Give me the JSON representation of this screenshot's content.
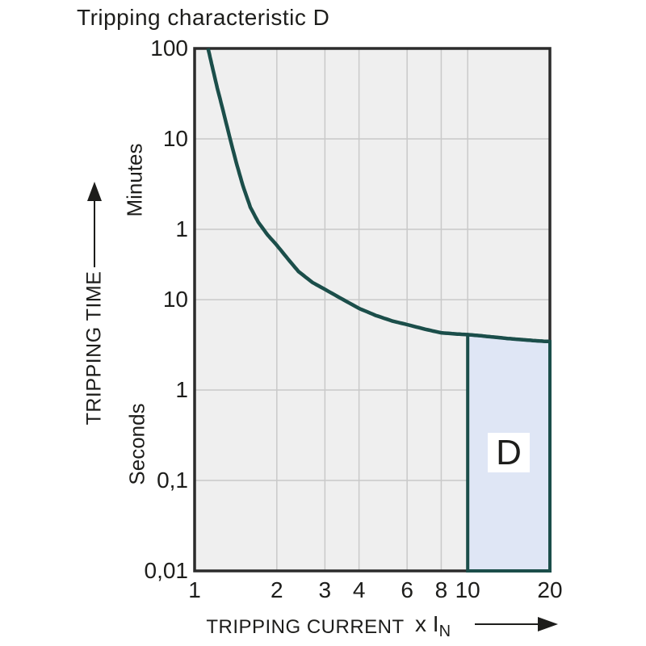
{
  "title": "Tripping characteristic D",
  "colors": {
    "curve": "#1b4e4a",
    "region_fill": "#dfe6f5",
    "region_stroke": "#1b4e4a",
    "plot_background": "#efefef",
    "gridline": "#c9c9c9",
    "frame": "#2b2b2b",
    "text": "#1d1d1b"
  },
  "chart_data": {
    "type": "line",
    "title": "Tripping characteristic D",
    "grid": true,
    "x_axis": {
      "label": "TRIPPING CURRENT",
      "unit_prefix": "x I",
      "unit_subscript": "N",
      "scale": "log",
      "range": [
        1,
        20
      ],
      "ticks": [
        {
          "label": "1",
          "value": 1,
          "gridline": false
        },
        {
          "label": "2",
          "value": 2,
          "gridline": true
        },
        {
          "label": "3",
          "value": 3,
          "gridline": true
        },
        {
          "label": "4",
          "value": 4,
          "gridline": true
        },
        {
          "label": "6",
          "value": 6,
          "gridline": true
        },
        {
          "label": "8",
          "value": 8,
          "gridline": true
        },
        {
          "label": "10",
          "value": 10,
          "gridline": true
        },
        {
          "label": "20",
          "value": 20,
          "gridline": false
        }
      ]
    },
    "y_axis": {
      "label": "TRIPPING TIME",
      "upper_unit": "Minutes",
      "lower_unit": "Seconds",
      "scale": "log",
      "range_seconds": [
        0.01,
        6000
      ],
      "ticks": [
        {
          "label": "100",
          "seconds": 6000,
          "unit": "minutes",
          "gridline": false
        },
        {
          "label": "10",
          "seconds": 600,
          "unit": "minutes",
          "gridline": true
        },
        {
          "label": "1",
          "seconds": 60,
          "unit": "minutes",
          "gridline": true
        },
        {
          "label": "10",
          "seconds": 10,
          "unit": "seconds",
          "gridline": true
        },
        {
          "label": "1",
          "seconds": 1,
          "unit": "seconds",
          "gridline": true
        },
        {
          "label": "0,1",
          "seconds": 0.1,
          "unit": "seconds",
          "gridline": true
        },
        {
          "label": "0,01",
          "seconds": 0.01,
          "unit": "seconds",
          "gridline": false
        }
      ]
    },
    "series": [
      {
        "name": "tripping-curve",
        "points": [
          [
            1.12,
            6000
          ],
          [
            1.16,
            3800
          ],
          [
            1.21,
            2200
          ],
          [
            1.27,
            1250
          ],
          [
            1.34,
            650
          ],
          [
            1.42,
            330
          ],
          [
            1.5,
            185
          ],
          [
            1.6,
            105
          ],
          [
            1.71,
            72
          ],
          [
            1.85,
            52
          ],
          [
            2.0,
            40
          ],
          [
            2.2,
            28
          ],
          [
            2.4,
            20.5
          ],
          [
            2.7,
            15.5
          ],
          [
            3.0,
            13
          ],
          [
            3.4,
            10.5
          ],
          [
            4.0,
            8.0
          ],
          [
            4.6,
            6.7
          ],
          [
            5.3,
            5.8
          ],
          [
            6.0,
            5.3
          ],
          [
            7.0,
            4.7
          ],
          [
            8.0,
            4.3
          ],
          [
            9.0,
            4.18
          ],
          [
            10.0,
            4.1
          ],
          [
            11.0,
            4.0
          ],
          [
            12.0,
            3.9
          ],
          [
            14.0,
            3.72
          ],
          [
            16.0,
            3.6
          ],
          [
            18.0,
            3.5
          ],
          [
            20.0,
            3.44
          ]
        ]
      }
    ],
    "region": {
      "label": "D",
      "x_range": [
        10,
        20
      ],
      "bottom_seconds": 0.01,
      "top_boundary": "curve"
    }
  }
}
